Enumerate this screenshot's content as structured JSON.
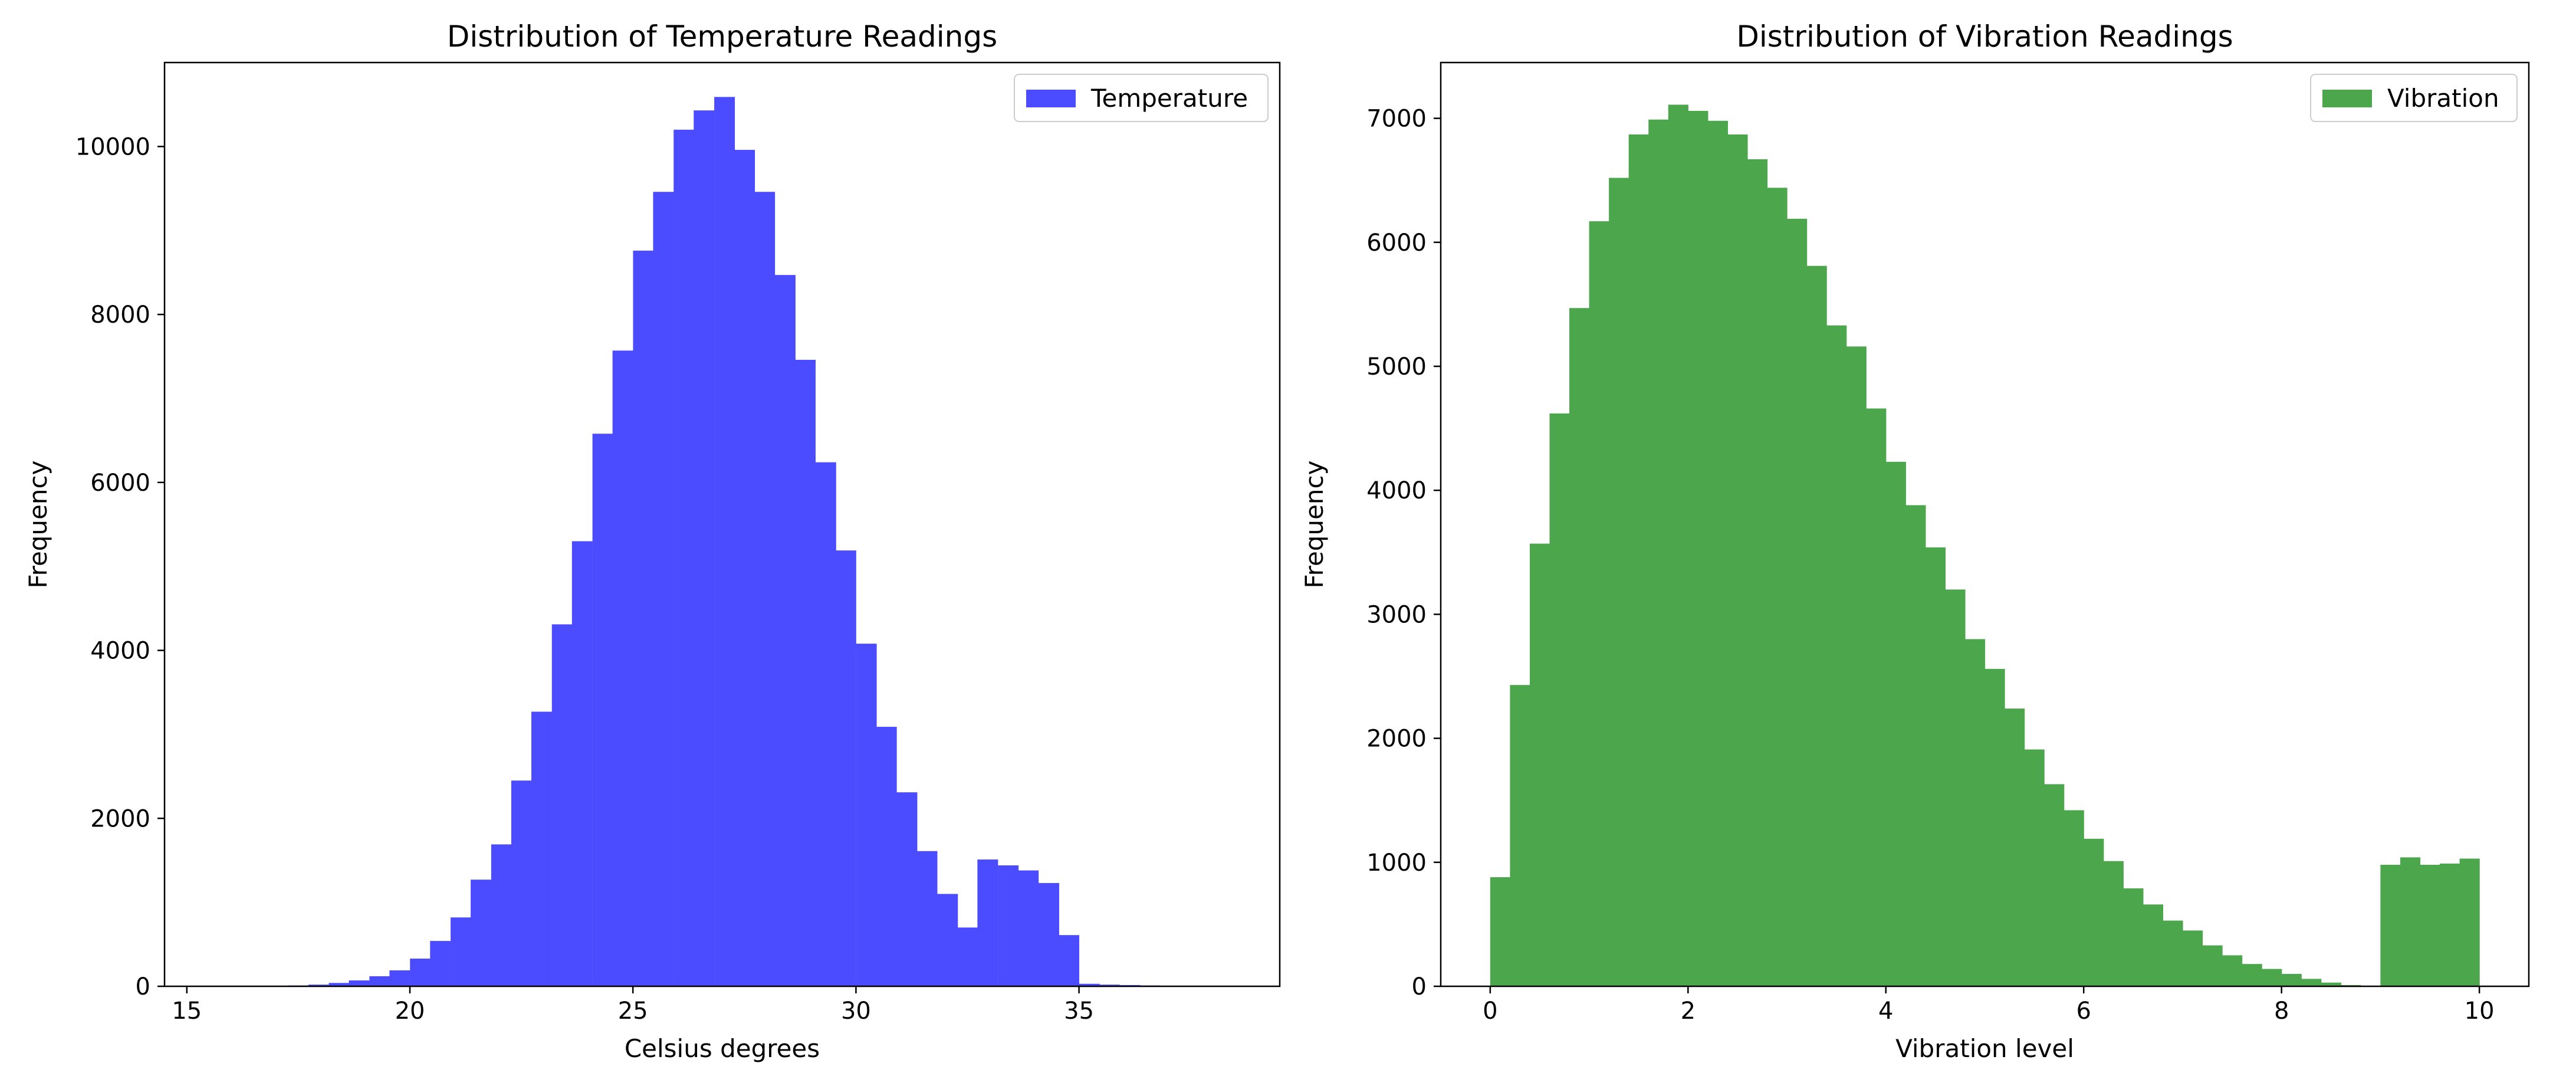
{
  "chart_data": [
    {
      "type": "bar",
      "title": "Distribution of Temperature Readings",
      "xlabel": "Celsius degrees",
      "ylabel": "Frequency",
      "xlim": [
        14.5,
        39.5
      ],
      "ylim": [
        0,
        11000
      ],
      "xticks": [
        15,
        20,
        25,
        30,
        35
      ],
      "yticks": [
        0,
        2000,
        4000,
        6000,
        8000,
        10000
      ],
      "bin_width": 0.4545,
      "legend": "top-right",
      "grid": false,
      "color": "#4b4bff",
      "series": [
        {
          "name": "Temperature",
          "x": [
            17.05,
            17.5,
            17.95,
            18.41,
            18.86,
            19.32,
            19.77,
            20.23,
            20.68,
            21.14,
            21.59,
            22.05,
            22.5,
            22.95,
            23.41,
            23.86,
            24.32,
            24.77,
            25.23,
            25.68,
            26.14,
            26.59,
            27.05,
            27.5,
            27.95,
            28.41,
            28.86,
            29.32,
            29.77,
            30.23,
            30.68,
            31.14,
            31.59,
            32.05,
            32.5,
            32.95,
            33.41,
            33.86,
            34.32,
            34.77,
            35.23,
            35.68,
            36.14,
            36.59,
            37.05
          ],
          "values": [
            5,
            10,
            20,
            40,
            70,
            120,
            190,
            330,
            540,
            820,
            1270,
            1690,
            2450,
            3270,
            4310,
            5300,
            6580,
            7570,
            8760,
            9460,
            10200,
            10430,
            10590,
            9960,
            9460,
            8470,
            7460,
            6240,
            5190,
            4080,
            3090,
            2310,
            1610,
            1100,
            700,
            1510,
            1440,
            1380,
            1230,
            610,
            30,
            20,
            15,
            10,
            5
          ]
        }
      ]
    },
    {
      "type": "bar",
      "title": "Distribution of Vibration Readings",
      "xlabel": "Vibration level",
      "ylabel": "Frequency",
      "xlim": [
        -0.5,
        10.5
      ],
      "ylim": [
        0,
        7450
      ],
      "xticks": [
        0,
        2,
        4,
        6,
        8,
        10
      ],
      "yticks": [
        0,
        1000,
        2000,
        3000,
        4000,
        5000,
        6000,
        7000
      ],
      "bin_width": 0.2,
      "legend": "top-right",
      "grid": false,
      "color": "#4ca64c",
      "series": [
        {
          "name": "Vibration",
          "x": [
            0.1,
            0.3,
            0.5,
            0.7,
            0.9,
            1.1,
            1.3,
            1.5,
            1.7,
            1.9,
            2.1,
            2.3,
            2.5,
            2.7,
            2.9,
            3.1,
            3.3,
            3.5,
            3.7,
            3.9,
            4.1,
            4.3,
            4.5,
            4.7,
            4.9,
            5.1,
            5.3,
            5.5,
            5.7,
            5.9,
            6.1,
            6.3,
            6.5,
            6.7,
            6.9,
            7.1,
            7.3,
            7.5,
            7.7,
            7.9,
            8.1,
            8.3,
            8.5,
            8.7,
            8.9,
            9.1,
            9.3,
            9.5,
            9.7,
            9.9
          ],
          "values": [
            880,
            2430,
            3570,
            4620,
            5470,
            6170,
            6520,
            6870,
            6990,
            7110,
            7060,
            6980,
            6870,
            6670,
            6440,
            6190,
            5810,
            5330,
            5160,
            4660,
            4230,
            3880,
            3540,
            3200,
            2800,
            2560,
            2240,
            1910,
            1630,
            1420,
            1190,
            1010,
            790,
            660,
            530,
            450,
            330,
            250,
            180,
            140,
            100,
            60,
            30,
            10,
            5,
            980,
            1040,
            980,
            990,
            1030
          ]
        }
      ]
    }
  ]
}
